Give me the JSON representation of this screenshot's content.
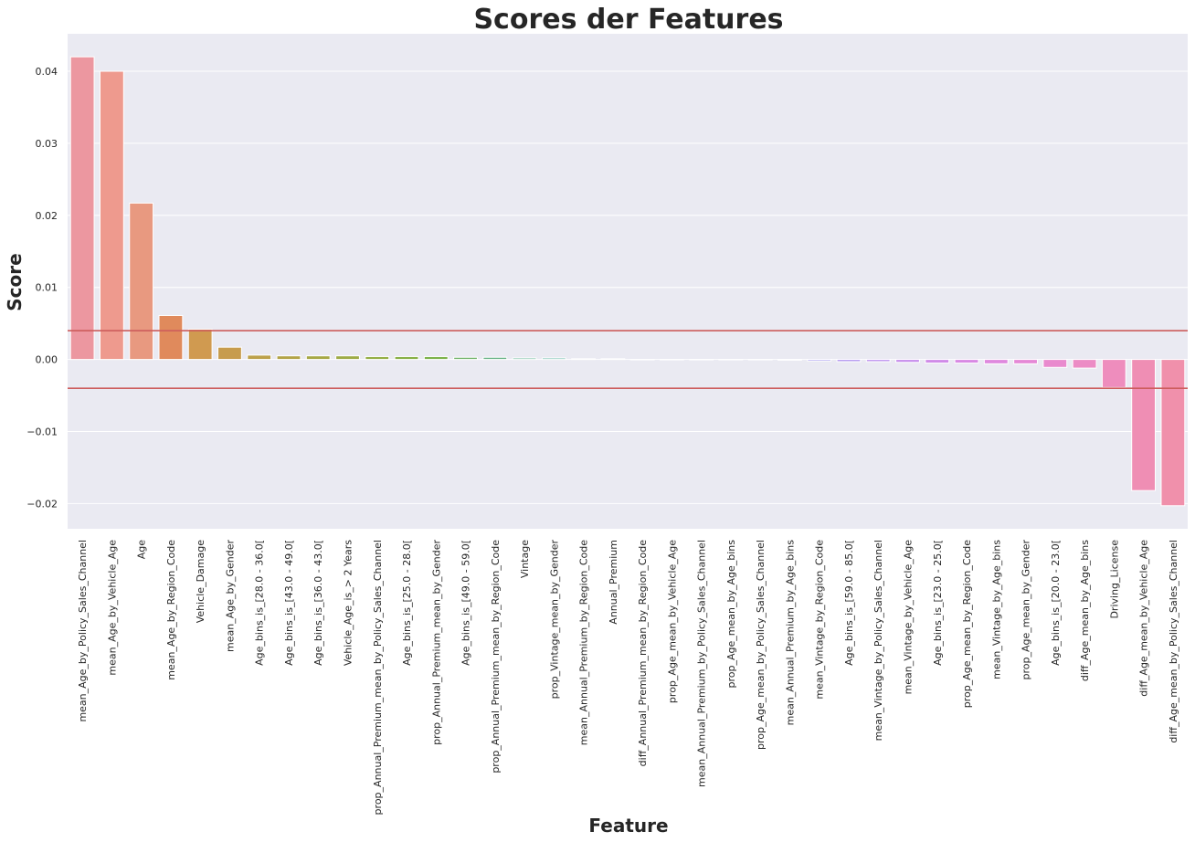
{
  "chart_data": {
    "type": "bar",
    "title": "Scores der Features",
    "xlabel": "Feature",
    "ylabel": "Score",
    "ylim": [
      -0.0235,
      0.0452
    ],
    "yticks": [
      "0.04",
      "0.03",
      "0.02",
      "0.01",
      "0.00",
      "−0.01",
      "−0.02"
    ],
    "ytick_values": [
      0.04,
      0.03,
      0.02,
      0.01,
      0.0,
      -0.01,
      -0.02
    ],
    "grid": true,
    "threshold_lines": [
      0.004,
      -0.004
    ],
    "threshold_color": "#cd5c5c",
    "background_color": "#eaeaf2",
    "categories": [
      "mean_Age_by_Policy_Sales_Channel",
      "mean_Age_by_Vehicle_Age",
      "Age",
      "mean_Age_by_Region_Code",
      "Vehicle_Damage",
      "mean_Age_by_Gender",
      "Age_bins_is_[28.0 - 36.0[",
      "Age_bins_is_[43.0 - 49.0[",
      "Age_bins_is_[36.0 - 43.0[",
      "Vehicle_Age_is_> 2 Years",
      "prop_Annual_Premium_mean_by_Policy_Sales_Channel",
      "Age_bins_is_[25.0 - 28.0[",
      "prop_Annual_Premium_mean_by_Gender",
      "Age_bins_is_[49.0 - 59.0[",
      "prop_Annual_Premium_mean_by_Region_Code",
      "Vintage",
      "prop_Vintage_mean_by_Gender",
      "mean_Annual_Premium_by_Region_Code",
      "Annual_Premium",
      "diff_Annual_Premium_mean_by_Region_Code",
      "prop_Age_mean_by_Vehicle_Age",
      "mean_Annual_Premium_by_Policy_Sales_Channel",
      "prop_Age_mean_by_Age_bins",
      "prop_Age_mean_by_Policy_Sales_Channel",
      "mean_Annual_Premium_by_Age_bins",
      "mean_Vintage_by_Region_Code",
      "Age_bins_is_[59.0 - 85.0[",
      "mean_Vintage_by_Policy_Sales_Channel",
      "mean_Vintage_by_Vehicle_Age",
      "Age_bins_is_[23.0 - 25.0[",
      "prop_Age_mean_by_Region_Code",
      "mean_Vintage_by_Age_bins",
      "prop_Age_mean_by_Gender",
      "Age_bins_is_[20.0 - 23.0[",
      "diff_Age_mean_by_Age_bins",
      "Driving_License",
      "diff_Age_mean_by_Vehicle_Age",
      "diff_Age_mean_by_Policy_Sales_Channel"
    ],
    "values": [
      0.042,
      0.04,
      0.0217,
      0.0061,
      0.0042,
      0.0017,
      0.0006,
      0.0005,
      0.0005,
      0.0005,
      0.0004,
      0.0004,
      0.0004,
      0.0003,
      0.0003,
      0.0002,
      0.0002,
      0.0001,
      0.0001,
      0.0,
      0.0,
      0.0,
      0.0,
      0.0,
      -0.0001,
      -0.0002,
      -0.0003,
      -0.0003,
      -0.0004,
      -0.0005,
      -0.0005,
      -0.0006,
      -0.0006,
      -0.0011,
      -0.0012,
      -0.0039,
      -0.0182,
      -0.0203
    ],
    "colors": [
      "#ec97a0",
      "#ee9a8e",
      "#e89980",
      "#e08a5c",
      "#d09a50",
      "#c79c4d",
      "#bca14a",
      "#b3a447",
      "#a7a845",
      "#9eab46",
      "#94ae45",
      "#87b046",
      "#7cb24a",
      "#72b46c",
      "#6ab487",
      "#66b599",
      "#63b5a6",
      "#62b5b1",
      "#61b4bd",
      "#62b3c8",
      "#64b1d3",
      "#6aaddd",
      "#74a9e6",
      "#84a3ec",
      "#959def",
      "#a498f0",
      "#b194ef",
      "#bc90ee",
      "#c68dec",
      "#d08be8",
      "#d889e4",
      "#df88de",
      "#e588d6",
      "#e98ace",
      "#ec8cc5",
      "#ee8dbd",
      "#ef8eb4",
      "#f090ab"
    ]
  }
}
